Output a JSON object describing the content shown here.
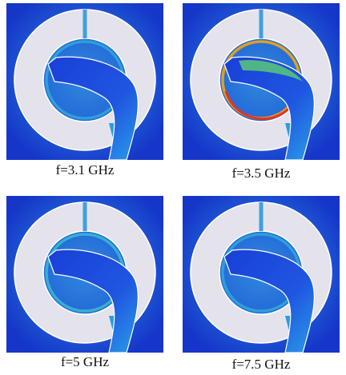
{
  "panels": [
    {
      "caption": "f=3.1 GHz"
    },
    {
      "caption": "f=3.5 GHz"
    },
    {
      "caption": "f=5 GHz"
    },
    {
      "caption": "f=7.5 GHz"
    }
  ]
}
